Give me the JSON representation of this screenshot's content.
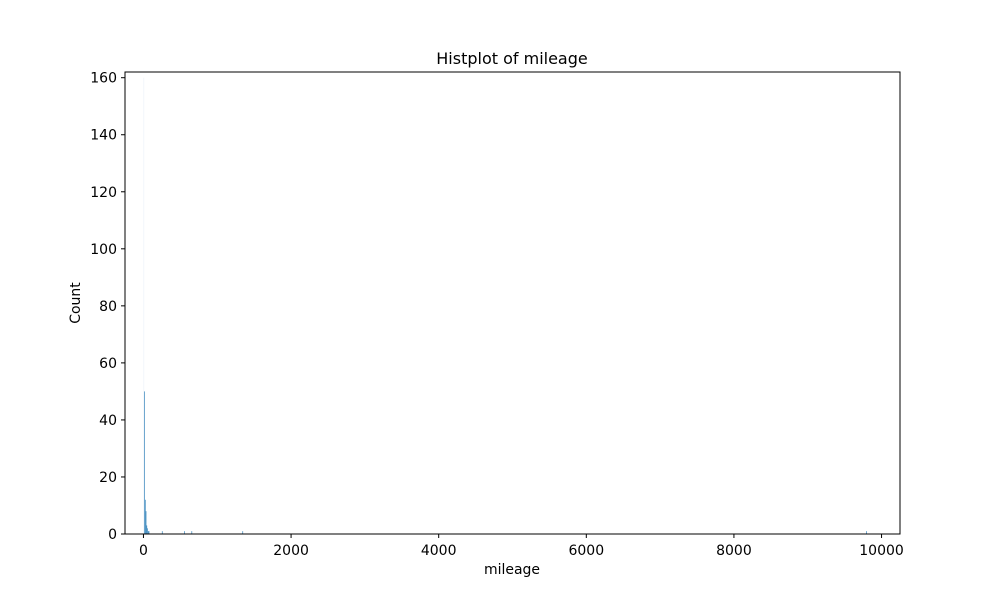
{
  "chart_data": {
    "type": "bar",
    "title": "Histplot of mileage",
    "xlabel": "mileage",
    "ylabel": "Count",
    "xlim": [
      -250,
      10250
    ],
    "ylim": [
      0,
      162
    ],
    "x_ticks": [
      0,
      2000,
      4000,
      6000,
      8000,
      10000
    ],
    "y_ticks": [
      0,
      20,
      40,
      60,
      80,
      100,
      120,
      140,
      160
    ],
    "grid": false,
    "legend": "none",
    "bar_color": "#1f77b4",
    "bin_width": 10,
    "bins": [
      {
        "x": 0,
        "count": 160
      },
      {
        "x": 10,
        "count": 50
      },
      {
        "x": 20,
        "count": 12
      },
      {
        "x": 30,
        "count": 8
      },
      {
        "x": 40,
        "count": 3
      },
      {
        "x": 50,
        "count": 2
      },
      {
        "x": 60,
        "count": 1
      },
      {
        "x": 70,
        "count": 1
      },
      {
        "x": 250,
        "count": 1
      },
      {
        "x": 550,
        "count": 1
      },
      {
        "x": 650,
        "count": 1
      },
      {
        "x": 1340,
        "count": 1
      },
      {
        "x": 9790,
        "count": 1
      }
    ]
  }
}
